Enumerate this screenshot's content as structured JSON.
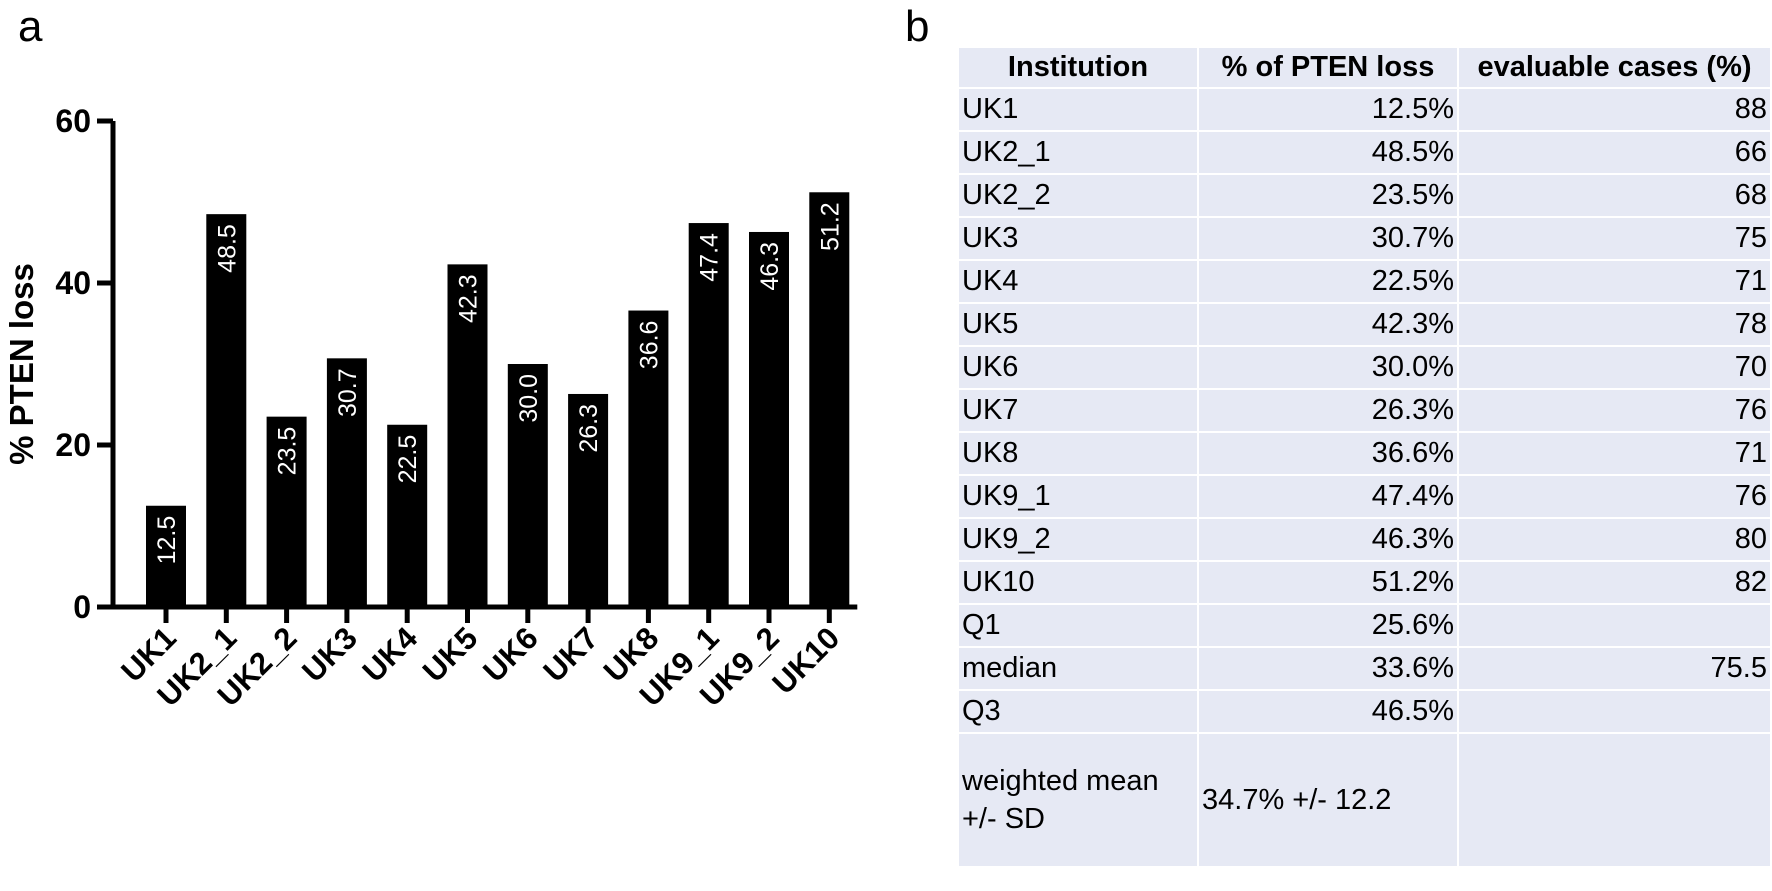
{
  "panel_labels": {
    "a": "a",
    "b": "b"
  },
  "chart_data": {
    "type": "bar",
    "categories": [
      "UK1",
      "UK2_1",
      "UK2_2",
      "UK3",
      "UK4",
      "UK5",
      "UK6",
      "UK7",
      "UK8",
      "UK9_1",
      "UK9_2",
      "UK10"
    ],
    "values": [
      12.5,
      48.5,
      23.5,
      30.7,
      22.5,
      42.3,
      30.0,
      26.3,
      36.6,
      47.4,
      46.3,
      51.2
    ],
    "data_labels": [
      "12.5",
      "48.5",
      "23.5",
      "30.7",
      "22.5",
      "42.3",
      "30.0",
      "26.3",
      "36.6",
      "47.4",
      "46.3",
      "51.2"
    ],
    "ylabel": "% PTEN loss",
    "xlabel": "",
    "ylim": [
      0,
      60
    ],
    "yticks": [
      0,
      20,
      40,
      60
    ],
    "bar_color": "#000000",
    "label_color": "#ffffff",
    "grid": false
  },
  "table": {
    "headers": [
      "Institution",
      "% of PTEN loss",
      "evaluable cases (%)"
    ],
    "rows": [
      [
        "UK1",
        "12.5%",
        "88"
      ],
      [
        "UK2_1",
        "48.5%",
        "66"
      ],
      [
        "UK2_2",
        "23.5%",
        "68"
      ],
      [
        "UK3",
        "30.7%",
        "75"
      ],
      [
        "UK4",
        "22.5%",
        "71"
      ],
      [
        "UK5",
        "42.3%",
        "78"
      ],
      [
        "UK6",
        "30.0%",
        "70"
      ],
      [
        "UK7",
        "26.3%",
        "76"
      ],
      [
        "UK8",
        "36.6%",
        "71"
      ],
      [
        "UK9_1",
        "47.4%",
        "76"
      ],
      [
        "UK9_2",
        "46.3%",
        "80"
      ],
      [
        "UK10",
        "51.2%",
        "82"
      ],
      [
        "Q1",
        "25.6%",
        ""
      ],
      [
        "median",
        "33.6%",
        "75.5"
      ],
      [
        "Q3",
        "46.5%",
        ""
      ]
    ],
    "summary": {
      "label": "weighted mean +/- SD",
      "value": "34.7% +/- 12.2",
      "cases": ""
    },
    "cell_color": "#e6e9f4"
  }
}
